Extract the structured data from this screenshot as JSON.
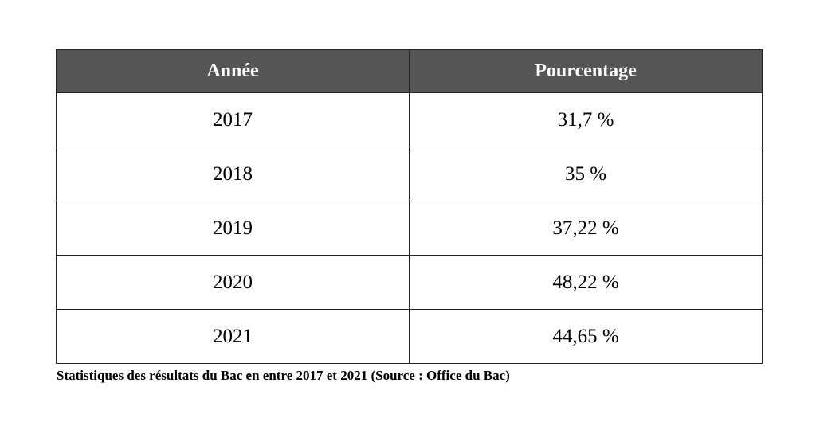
{
  "chart_data": {
    "type": "table",
    "columns": [
      "Année",
      "Pourcentage"
    ],
    "rows": [
      {
        "annee": "2017",
        "pourcentage": "31,7 %"
      },
      {
        "annee": "2018",
        "pourcentage": "35 %"
      },
      {
        "annee": "2019",
        "pourcentage": "37,22 %"
      },
      {
        "annee": "2020",
        "pourcentage": "48,22 %"
      },
      {
        "annee": "2021",
        "pourcentage": "44,65 %"
      }
    ],
    "x": [
      2017,
      2018,
      2019,
      2020,
      2021
    ],
    "values": [
      31.7,
      35,
      37.22,
      48.22,
      44.65
    ],
    "caption": "Statistiques des résultats du Bac en entre 2017 et 2021 (Source : Office du Bac)"
  },
  "colors": {
    "header_bg": "#555555",
    "header_text": "#ffffff",
    "border": "#222222"
  }
}
